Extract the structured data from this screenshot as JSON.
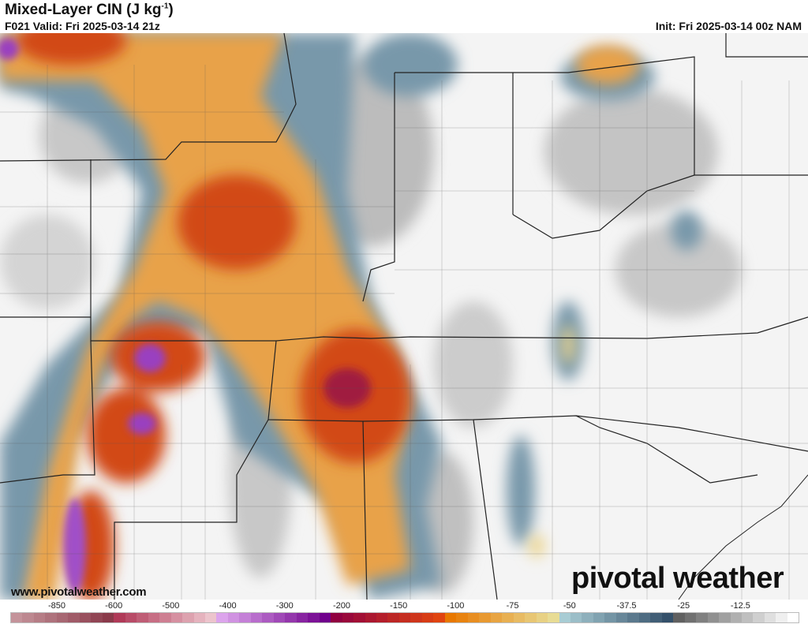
{
  "header": {
    "title": "Mixed-Layer CIN (J kg",
    "title_unit_sup": "-1",
    "title_close": ")",
    "valid": "F021 Valid: Fri 2025-03-14 21z",
    "init": "Init: Fri 2025-03-14 00z NAM"
  },
  "footer": {
    "url": "www.pivotalweather.com",
    "logo": "pivotal weather"
  },
  "colorbar": {
    "labels": [
      "-850",
      "-600",
      "-500",
      "-400",
      "-300",
      "-200",
      "-150",
      "-100",
      "-75",
      "-50",
      "-37.5",
      "-25",
      "-12.5"
    ],
    "groups": [
      {
        "from": "#c4939a",
        "to": "#8a3a4a",
        "count": 9
      },
      {
        "from": "#b03a58",
        "to": "#ecc4cc",
        "count": 9
      },
      {
        "from": "#dca4ec",
        "to": "#70008c",
        "count": 10
      },
      {
        "from": "#900040",
        "to": "#e04410",
        "count": 10
      },
      {
        "from": "#e87800",
        "to": "#e8dc94",
        "count": 10
      },
      {
        "from": "#a8ccd4",
        "to": "#34506a",
        "count": 10
      },
      {
        "from": "#606060",
        "to": "#ffffff",
        "count": 11
      }
    ]
  },
  "map_colors": {
    "background": "#f4f4f4",
    "gray": "#b8b8b8",
    "bluegray": "#6f8fa0",
    "orange": "#e8a040",
    "red": "#d24a18",
    "darkred": "#a01a40",
    "purple": "#a050c8",
    "yellow": "#ecd48c"
  }
}
